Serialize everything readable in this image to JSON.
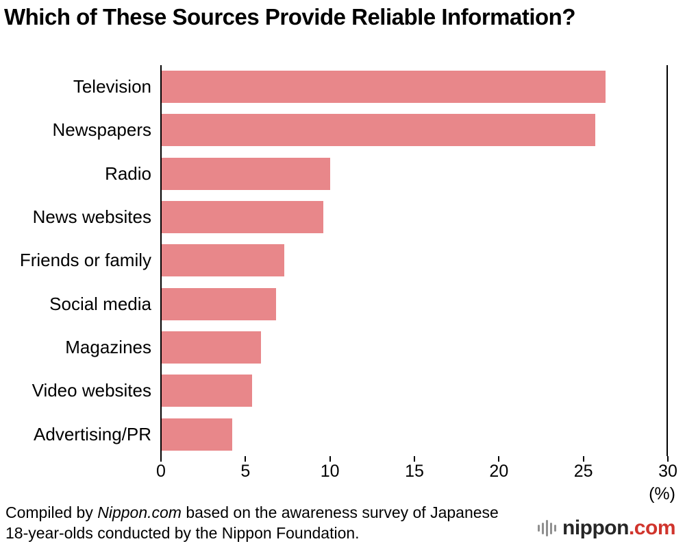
{
  "chart_data": {
    "type": "bar",
    "orientation": "horizontal",
    "title": "Which of These Sources Provide Reliable Information?",
    "categories": [
      "Television",
      "Newspapers",
      "Radio",
      "News websites",
      "Friends or family",
      "Social media",
      "Magazines",
      "Video websites",
      "Advertising/PR"
    ],
    "values": [
      26.3,
      25.7,
      10.0,
      9.6,
      7.3,
      6.8,
      5.9,
      5.4,
      4.2
    ],
    "xlim": [
      0,
      30
    ],
    "xticks": [
      0,
      5,
      10,
      15,
      20,
      25,
      30
    ],
    "unit_label": "(%)",
    "bar_color": "#e8878a",
    "axis_color": "#000000",
    "grid": false,
    "legend": false
  },
  "footer": {
    "prefix": "Compiled by ",
    "source_italic": "Nippon.com",
    "suffix": " based on the awareness survey of Japanese 18-year-olds conducted by the Nippon Foundation."
  },
  "logo": {
    "name": "nippon",
    "domain": ".com",
    "accent_color": "#d0342c",
    "icon": "soundwave-bars"
  }
}
